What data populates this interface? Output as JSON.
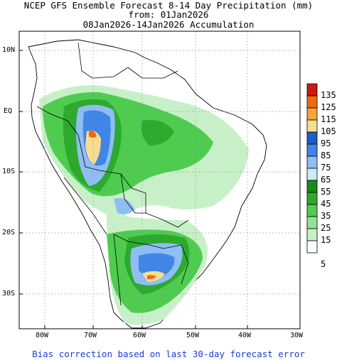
{
  "title": {
    "line1": "NCEP GFS Ensemble Forecast 8-14 Day Precipitation (mm)",
    "line2": "from: 01Jan2026",
    "line3": "08Jan2026-14Jan2026 Accumulation"
  },
  "axes": {
    "lat_labels": [
      "10N",
      "EQ",
      "10S",
      "20S",
      "30S"
    ],
    "lon_labels": [
      "80W",
      "70W",
      "60W",
      "50W",
      "40W",
      "30W"
    ]
  },
  "legend": {
    "items": [
      {
        "label": "135",
        "color": "#cc1a0f"
      },
      {
        "label": "125",
        "color": "#ee6a12"
      },
      {
        "label": "115",
        "color": "#f5a43a"
      },
      {
        "label": "105",
        "color": "#f7dd8f"
      },
      {
        "label": "95",
        "color": "#1f5ccc"
      },
      {
        "label": "85",
        "color": "#3f86e6"
      },
      {
        "label": "75",
        "color": "#8fbef5"
      },
      {
        "label": "65",
        "color": "#c9ecf7"
      },
      {
        "label": "55",
        "color": "#1a8a1a"
      },
      {
        "label": "45",
        "color": "#2daa2d"
      },
      {
        "label": "35",
        "color": "#4fcc4f"
      },
      {
        "label": "25",
        "color": "#94e294"
      },
      {
        "label": "15",
        "color": "#c8f0c8"
      },
      {
        "label": "5",
        "color": "#ffffff"
      }
    ]
  },
  "footer": "Bias correction based on last 30-day forecast error"
}
